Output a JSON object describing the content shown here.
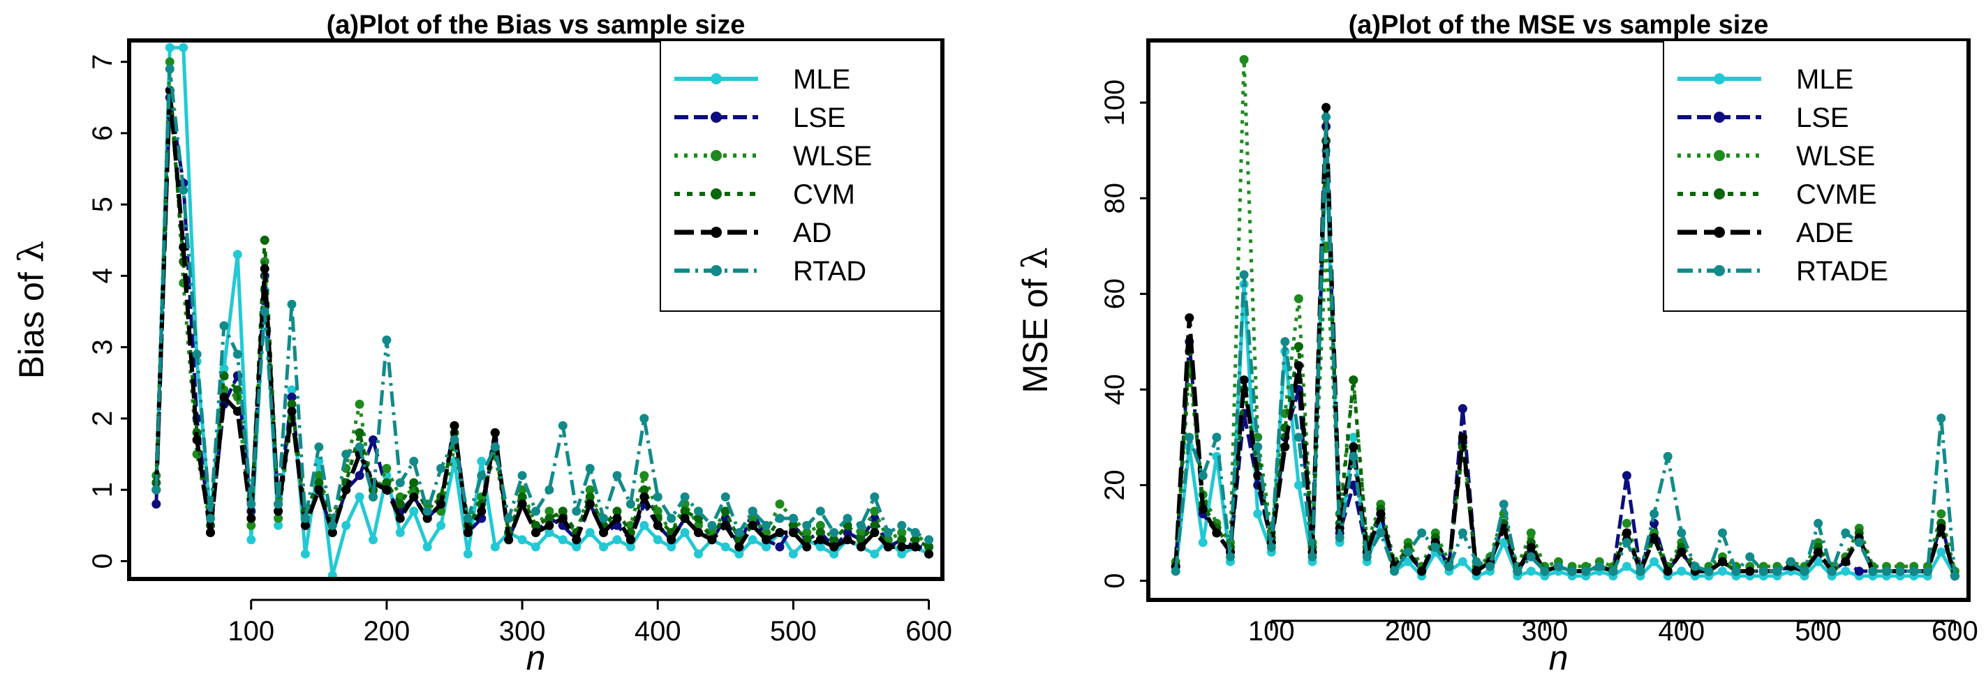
{
  "chart_data": [
    {
      "type": "line",
      "title": "(a)Plot of the Bias vs sample size",
      "xlabel": "n",
      "ylabel_prefix": "Bias of ",
      "ylabel_symbol": "λ",
      "xlim": [
        10,
        610
      ],
      "ylim": [
        -0.25,
        7.3
      ],
      "xticks": [
        100,
        200,
        300,
        400,
        500,
        600
      ],
      "yticks": [
        0,
        1,
        2,
        3,
        4,
        5,
        6,
        7
      ],
      "legend_position": "top-right",
      "x": [
        30,
        40,
        50,
        60,
        70,
        80,
        90,
        100,
        110,
        120,
        130,
        140,
        150,
        160,
        170,
        180,
        190,
        200,
        210,
        220,
        230,
        240,
        250,
        260,
        270,
        280,
        290,
        300,
        310,
        320,
        330,
        340,
        350,
        360,
        370,
        380,
        390,
        400,
        410,
        420,
        430,
        440,
        450,
        460,
        470,
        480,
        490,
        500,
        510,
        520,
        530,
        540,
        550,
        560,
        570,
        580,
        590,
        600
      ],
      "series": [
        {
          "name": "MLE",
          "color": "#22c9d4",
          "dash": "",
          "width": 5,
          "values": [
            1.0,
            7.2,
            7.2,
            2.8,
            0.6,
            2.7,
            4.3,
            0.3,
            3.8,
            0.5,
            2.4,
            0.1,
            1.4,
            -0.2,
            0.5,
            0.9,
            0.3,
            1.2,
            0.4,
            0.7,
            0.2,
            0.5,
            1.4,
            0.1,
            1.4,
            0.2,
            0.4,
            0.3,
            0.2,
            0.4,
            0.3,
            0.2,
            0.4,
            0.2,
            0.3,
            0.2,
            0.5,
            0.3,
            0.2,
            0.4,
            0.1,
            0.3,
            0.2,
            0.1,
            0.3,
            0.2,
            0.4,
            0.1,
            0.3,
            0.2,
            0.1,
            0.3,
            0.2,
            0.1,
            0.3,
            0.1,
            0.2,
            0.1
          ]
        },
        {
          "name": "LSE",
          "color": "#0d0d7e",
          "dash": "20,8",
          "width": 5,
          "values": [
            0.8,
            6.5,
            5.3,
            2.0,
            0.4,
            2.2,
            2.6,
            0.7,
            4.0,
            0.8,
            2.3,
            0.5,
            1.0,
            0.4,
            1.0,
            1.2,
            1.7,
            1.0,
            0.7,
            0.9,
            0.6,
            0.8,
            1.9,
            0.4,
            0.6,
            1.8,
            0.3,
            0.8,
            0.4,
            0.6,
            0.5,
            0.3,
            0.8,
            0.4,
            0.5,
            0.3,
            0.8,
            0.5,
            0.3,
            0.6,
            0.4,
            0.3,
            0.6,
            0.2,
            0.7,
            0.3,
            0.2,
            0.5,
            0.3,
            0.4,
            0.2,
            0.4,
            0.3,
            0.6,
            0.2,
            0.3,
            0.2,
            0.2
          ]
        },
        {
          "name": "WLSE",
          "color": "#1e8b1e",
          "dash": "5,9",
          "width": 5,
          "values": [
            1.2,
            7.0,
            3.9,
            1.5,
            0.5,
            2.4,
            2.3,
            0.5,
            4.2,
            0.6,
            2.0,
            0.6,
            1.2,
            0.6,
            1.3,
            2.2,
            0.9,
            1.3,
            0.9,
            1.0,
            0.8,
            0.7,
            1.6,
            0.6,
            0.9,
            1.5,
            0.4,
            1.0,
            0.5,
            0.7,
            0.6,
            0.4,
            1.0,
            0.5,
            0.6,
            0.5,
            1.2,
            0.7,
            0.4,
            0.8,
            0.5,
            0.4,
            0.7,
            0.3,
            0.6,
            0.4,
            0.8,
            0.6,
            0.4,
            0.5,
            0.3,
            0.5,
            0.4,
            0.7,
            0.3,
            0.4,
            0.4,
            0.2
          ]
        },
        {
          "name": "CVM",
          "color": "#0a660a",
          "dash": "8,10",
          "width": 5,
          "values": [
            1.1,
            6.6,
            4.2,
            1.8,
            0.5,
            2.6,
            2.4,
            0.6,
            4.5,
            0.7,
            2.2,
            0.7,
            1.1,
            0.5,
            1.1,
            1.8,
            1.0,
            1.1,
            0.8,
            1.1,
            0.7,
            0.9,
            1.8,
            0.5,
            0.8,
            1.6,
            0.4,
            0.9,
            0.5,
            0.6,
            0.7,
            0.4,
            0.9,
            0.5,
            0.7,
            0.4,
            1.0,
            0.6,
            0.4,
            0.7,
            0.6,
            0.3,
            0.7,
            0.3,
            0.5,
            0.3,
            0.6,
            0.5,
            0.3,
            0.4,
            0.3,
            0.5,
            0.3,
            0.5,
            0.2,
            0.3,
            0.3,
            0.2
          ]
        },
        {
          "name": "AD",
          "color": "#000000",
          "dash": "28,10",
          "width": 6,
          "values": [
            1.0,
            6.6,
            4.4,
            1.7,
            0.4,
            2.3,
            2.1,
            0.6,
            4.1,
            0.7,
            2.1,
            0.5,
            1.0,
            0.4,
            1.0,
            1.5,
            1.1,
            1.0,
            0.6,
            0.9,
            0.6,
            0.8,
            1.9,
            0.4,
            0.7,
            1.8,
            0.3,
            0.8,
            0.4,
            0.5,
            0.6,
            0.3,
            0.8,
            0.4,
            0.6,
            0.3,
            0.9,
            0.5,
            0.3,
            0.6,
            0.4,
            0.3,
            0.5,
            0.2,
            0.5,
            0.3,
            0.4,
            0.4,
            0.2,
            0.3,
            0.2,
            0.3,
            0.2,
            0.4,
            0.2,
            0.2,
            0.2,
            0.1
          ]
        },
        {
          "name": "RTAD",
          "color": "#128a8a",
          "dash": "22,8,4,8",
          "width": 5,
          "values": [
            1.0,
            6.9,
            5.2,
            2.9,
            0.6,
            3.3,
            2.9,
            0.8,
            3.5,
            0.8,
            3.6,
            0.6,
            1.6,
            0.5,
            1.5,
            1.6,
            0.9,
            3.1,
            1.1,
            1.4,
            0.7,
            1.3,
            1.7,
            0.6,
            1.2,
            1.6,
            0.6,
            1.2,
            0.7,
            1.0,
            1.9,
            0.7,
            1.3,
            0.6,
            1.2,
            0.8,
            2.0,
            0.9,
            0.6,
            0.9,
            0.7,
            0.5,
            0.9,
            0.4,
            0.7,
            0.5,
            0.6,
            0.6,
            0.5,
            0.7,
            0.4,
            0.6,
            0.5,
            0.9,
            0.4,
            0.5,
            0.4,
            0.3
          ]
        }
      ]
    },
    {
      "type": "line",
      "title": "(a)Plot of the MSE vs sample size",
      "xlabel": "n",
      "ylabel_prefix": "MSE of ",
      "ylabel_symbol": "λ",
      "xlim": [
        10,
        610
      ],
      "ylim": [
        -4,
        113
      ],
      "xticks": [
        100,
        200,
        300,
        400,
        500,
        600
      ],
      "yticks": [
        0,
        20,
        40,
        60,
        80,
        100
      ],
      "legend_position": "top-right",
      "x": [
        30,
        40,
        50,
        60,
        70,
        80,
        90,
        100,
        110,
        120,
        130,
        140,
        150,
        160,
        170,
        180,
        190,
        200,
        210,
        220,
        230,
        240,
        250,
        260,
        270,
        280,
        290,
        300,
        310,
        320,
        330,
        340,
        350,
        360,
        370,
        380,
        390,
        400,
        410,
        420,
        430,
        440,
        450,
        460,
        470,
        480,
        490,
        500,
        510,
        520,
        530,
        540,
        550,
        560,
        570,
        580,
        590,
        600
      ],
      "series": [
        {
          "name": "MLE",
          "color": "#22c9d4",
          "dash": "",
          "width": 5,
          "values": [
            2,
            28,
            8,
            26,
            4,
            62,
            14,
            6,
            48,
            20,
            4,
            90,
            8,
            30,
            4,
            12,
            2,
            4,
            1,
            6,
            2,
            4,
            1,
            2,
            8,
            1,
            2,
            1,
            2,
            1,
            1,
            2,
            1,
            3,
            1,
            4,
            1,
            2,
            1,
            1,
            2,
            1,
            1,
            1,
            1,
            2,
            1,
            4,
            1,
            2,
            1,
            1,
            1,
            1,
            1,
            1,
            6,
            1
          ]
        },
        {
          "name": "LSE",
          "color": "#0d0d7e",
          "dash": "20,8",
          "width": 5,
          "values": [
            3,
            50,
            14,
            10,
            6,
            35,
            20,
            8,
            30,
            40,
            6,
            95,
            10,
            20,
            6,
            14,
            3,
            6,
            2,
            8,
            3,
            36,
            2,
            4,
            12,
            2,
            6,
            2,
            3,
            2,
            2,
            3,
            2,
            22,
            2,
            12,
            2,
            6,
            2,
            2,
            4,
            2,
            2,
            2,
            2,
            3,
            2,
            6,
            2,
            4,
            2,
            2,
            2,
            2,
            2,
            2,
            12,
            1
          ]
        },
        {
          "name": "WLSE",
          "color": "#1e8b1e",
          "dash": "5,9",
          "width": 5,
          "values": [
            4,
            44,
            18,
            12,
            8,
            109,
            30,
            10,
            35,
            59,
            8,
            70,
            14,
            42,
            8,
            16,
            4,
            8,
            3,
            10,
            4,
            30,
            3,
            5,
            14,
            3,
            10,
            3,
            4,
            3,
            3,
            4,
            3,
            12,
            3,
            10,
            3,
            8,
            3,
            3,
            5,
            3,
            3,
            3,
            3,
            4,
            3,
            8,
            3,
            5,
            11,
            3,
            3,
            3,
            3,
            3,
            14,
            2
          ]
        },
        {
          "name": "CVME",
          "color": "#0a660a",
          "dash": "8,10",
          "width": 5,
          "values": [
            3,
            48,
            16,
            11,
            7,
            40,
            24,
            9,
            32,
            49,
            7,
            92,
            12,
            42,
            7,
            15,
            3,
            7,
            2,
            9,
            3,
            28,
            2,
            4,
            12,
            2,
            8,
            2,
            3,
            2,
            2,
            3,
            2,
            10,
            2,
            9,
            2,
            7,
            2,
            2,
            4,
            2,
            2,
            2,
            2,
            3,
            2,
            7,
            2,
            4,
            10,
            2,
            2,
            2,
            2,
            2,
            12,
            1
          ]
        },
        {
          "name": "ADE",
          "color": "#000000",
          "dash": "28,10",
          "width": 6,
          "values": [
            3,
            55,
            15,
            10,
            6,
            42,
            22,
            8,
            28,
            45,
            6,
            99,
            11,
            28,
            6,
            14,
            3,
            6,
            2,
            8,
            3,
            30,
            2,
            4,
            11,
            2,
            7,
            2,
            3,
            2,
            2,
            3,
            2,
            10,
            2,
            9,
            2,
            6,
            2,
            2,
            4,
            2,
            2,
            2,
            2,
            3,
            2,
            6,
            2,
            4,
            9,
            2,
            2,
            2,
            2,
            2,
            11,
            1
          ]
        },
        {
          "name": "RTADE",
          "color": "#128a8a",
          "dash": "22,8,4,8",
          "width": 5,
          "values": [
            2,
            30,
            22,
            30,
            5,
            64,
            28,
            7,
            50,
            30,
            5,
            97,
            9,
            26,
            5,
            10,
            2,
            6,
            10,
            7,
            3,
            10,
            4,
            3,
            16,
            2,
            5,
            2,
            3,
            2,
            2,
            3,
            2,
            8,
            2,
            14,
            26,
            10,
            3,
            2,
            10,
            2,
            5,
            2,
            2,
            4,
            2,
            12,
            2,
            10,
            8,
            2,
            2,
            2,
            2,
            2,
            34,
            1
          ]
        }
      ]
    }
  ]
}
